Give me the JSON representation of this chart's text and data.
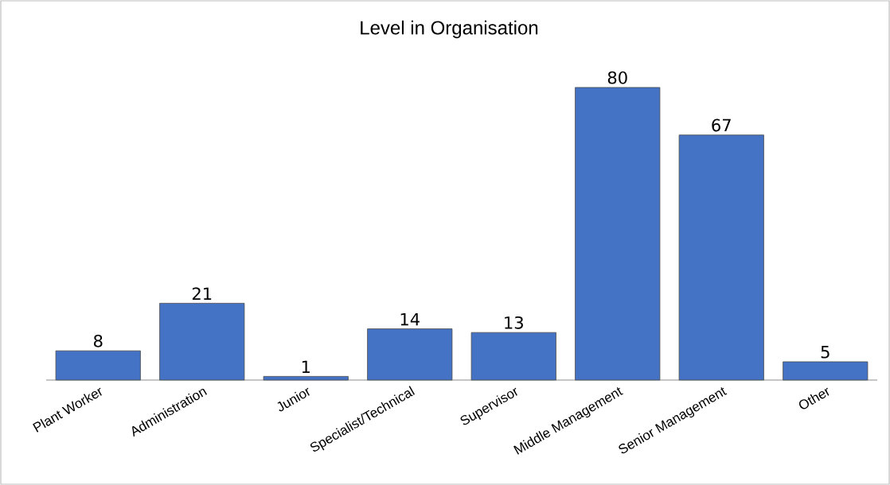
{
  "chart_data": {
    "type": "bar",
    "title": "Level in Organisation",
    "categories": [
      "Plant Worker",
      "Administration",
      "Junior",
      "Specialist/Technical",
      "Supervisor",
      "Middle Management",
      "Senior Management",
      "Other"
    ],
    "values": [
      8,
      21,
      1,
      14,
      13,
      80,
      67,
      5
    ],
    "color": "#4472c4",
    "data_labels": true
  }
}
